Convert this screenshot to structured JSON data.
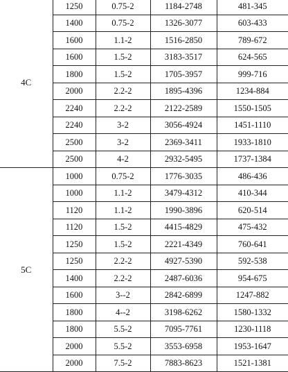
{
  "groups": [
    {
      "label": "4C",
      "rows": [
        [
          "1250",
          "0.75-2",
          "1184-2748",
          "481-345"
        ],
        [
          "1400",
          "0.75-2",
          "1326-3077",
          "603-433"
        ],
        [
          "1600",
          "1.1-2",
          "1516-2850",
          "789-672"
        ],
        [
          "1600",
          "1.5-2",
          "3183-3517",
          "624-565"
        ],
        [
          "1800",
          "1.5-2",
          "1705-3957",
          "999-716"
        ],
        [
          "2000",
          "2.2-2",
          "1895-4396",
          "1234-884"
        ],
        [
          "2240",
          "2.2-2",
          "2122-2589",
          "1550-1505"
        ],
        [
          "2240",
          "3-2",
          "3056-4924",
          "1451-1110"
        ],
        [
          "2500",
          "3-2",
          "2369-3411",
          "1933-1810"
        ],
        [
          "2500",
          "4-2",
          "2932-5495",
          "1737-1384"
        ]
      ]
    },
    {
      "label": "5C",
      "rows": [
        [
          "1000",
          "0.75-2",
          "1776-3035",
          "486-436"
        ],
        [
          "1000",
          "1.1-2",
          "3479-4312",
          "410-344"
        ],
        [
          "1120",
          "1.1-2",
          "1990-3896",
          "620-514"
        ],
        [
          "1120",
          "1.5-2",
          "4415-4829",
          "475-432"
        ],
        [
          "1250",
          "1.5-2",
          "2221-4349",
          "760-641"
        ],
        [
          "1250",
          "2.2-2",
          "4927-5390",
          "592-538"
        ],
        [
          "1400",
          "2.2-2",
          "2487-6036",
          "954-675"
        ],
        [
          "1600",
          "3--2",
          "2842-6899",
          "1247-882"
        ],
        [
          "1800",
          "4--2",
          "3198-6262",
          "1580-1332"
        ],
        [
          "1800",
          "5.5-2",
          "7095-7761",
          "1230-1118"
        ],
        [
          "2000",
          "5.5-2",
          "3553-6958",
          "1953-1647"
        ],
        [
          "2000",
          "7.5-2",
          "7883-8623",
          "1521-1381"
        ]
      ]
    }
  ]
}
